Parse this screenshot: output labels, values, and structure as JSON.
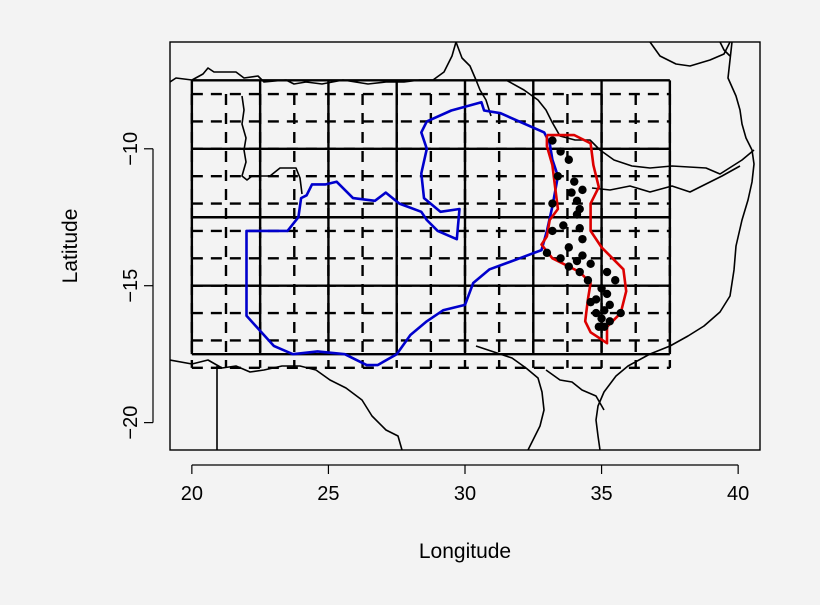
{
  "chart_data": {
    "type": "scatter",
    "title": "",
    "xlabel": "Longitude",
    "ylabel": "Latitude",
    "xlim": [
      19.2,
      40.8
    ],
    "ylim": [
      -21,
      -6.1
    ],
    "x_ticks": [
      20,
      25,
      30,
      35,
      40
    ],
    "y_ticks": [
      -20,
      -15,
      -10
    ],
    "x_tick_labels": [
      "20",
      "25",
      "30",
      "35",
      "40"
    ],
    "y_tick_labels": [
      "−20",
      "−15",
      "−10"
    ],
    "grid_coarse": {
      "lon_lines": [
        20,
        22.5,
        25,
        27.5,
        30,
        32.5,
        35,
        37.5
      ],
      "lat_lines": [
        -7.5,
        -10,
        -12.5,
        -15,
        -17.5
      ],
      "style": "solid"
    },
    "grid_fine": {
      "lon_lines": [
        20,
        21.25,
        22.5,
        23.75,
        25,
        26.25,
        27.5,
        28.75,
        30,
        31.25,
        32.5,
        33.75,
        35,
        36.25,
        37.5
      ],
      "lat_lines": [
        -8,
        -9,
        -10,
        -11,
        -12,
        -13,
        -14,
        -15,
        -16,
        -17,
        -18
      ],
      "style": "dashed"
    },
    "series": [
      {
        "color": "#0000cc",
        "kind": "outline",
        "points": [
          [
            28.6,
            -9.0
          ],
          [
            29.5,
            -8.6
          ],
          [
            30.6,
            -8.3
          ],
          [
            30.7,
            -8.6
          ],
          [
            31.3,
            -8.7
          ],
          [
            32.2,
            -9.1
          ],
          [
            32.9,
            -9.4
          ],
          [
            33.1,
            -9.8
          ],
          [
            33.2,
            -10.4
          ],
          [
            33.4,
            -11.0
          ],
          [
            33.2,
            -12.1
          ],
          [
            33.0,
            -13.0
          ],
          [
            32.8,
            -13.7
          ],
          [
            32.0,
            -14.0
          ],
          [
            30.9,
            -14.4
          ],
          [
            30.3,
            -14.9
          ],
          [
            30.0,
            -15.7
          ],
          [
            29.2,
            -15.9
          ],
          [
            28.6,
            -16.3
          ],
          [
            28.0,
            -16.8
          ],
          [
            27.5,
            -17.5
          ],
          [
            26.8,
            -17.9
          ],
          [
            26.4,
            -17.9
          ],
          [
            25.6,
            -17.5
          ],
          [
            24.6,
            -17.4
          ],
          [
            23.7,
            -17.5
          ],
          [
            23.0,
            -17.2
          ],
          [
            22.0,
            -16.1
          ],
          [
            22.0,
            -13.0
          ],
          [
            23.5,
            -13.0
          ],
          [
            23.9,
            -12.5
          ],
          [
            24.0,
            -11.8
          ],
          [
            24.2,
            -11.7
          ],
          [
            24.4,
            -11.3
          ],
          [
            24.9,
            -11.3
          ],
          [
            25.3,
            -11.2
          ],
          [
            25.9,
            -11.8
          ],
          [
            26.7,
            -11.9
          ],
          [
            27.1,
            -11.6
          ],
          [
            27.6,
            -12.0
          ],
          [
            28.4,
            -12.3
          ],
          [
            28.6,
            -12.6
          ],
          [
            29.0,
            -13.0
          ],
          [
            29.7,
            -13.3
          ],
          [
            29.8,
            -12.2
          ],
          [
            29.1,
            -12.3
          ],
          [
            28.5,
            -11.8
          ],
          [
            28.4,
            -10.9
          ],
          [
            28.6,
            -10.0
          ],
          [
            28.4,
            -9.4
          ],
          [
            28.6,
            -9.0
          ]
        ]
      },
      {
        "color": "#dd0000",
        "kind": "outline",
        "points": [
          [
            33.0,
            -9.5
          ],
          [
            33.6,
            -9.5
          ],
          [
            34.0,
            -9.5
          ],
          [
            34.6,
            -9.8
          ],
          [
            34.7,
            -10.6
          ],
          [
            34.9,
            -11.4
          ],
          [
            34.6,
            -12.0
          ],
          [
            34.6,
            -13.0
          ],
          [
            35.0,
            -13.6
          ],
          [
            35.4,
            -14.0
          ],
          [
            35.8,
            -14.4
          ],
          [
            35.9,
            -15.2
          ],
          [
            35.7,
            -16.0
          ],
          [
            35.2,
            -16.5
          ],
          [
            35.2,
            -17.1
          ],
          [
            34.9,
            -16.9
          ],
          [
            34.6,
            -16.7
          ],
          [
            34.4,
            -16.3
          ],
          [
            34.5,
            -15.5
          ],
          [
            34.6,
            -14.9
          ],
          [
            34.2,
            -14.5
          ],
          [
            33.8,
            -14.3
          ],
          [
            33.2,
            -14.0
          ],
          [
            32.8,
            -13.5
          ],
          [
            33.0,
            -13.2
          ],
          [
            33.1,
            -12.6
          ],
          [
            33.4,
            -12.2
          ],
          [
            33.3,
            -11.4
          ],
          [
            33.2,
            -10.6
          ],
          [
            33.0,
            -9.9
          ],
          [
            33.0,
            -9.5
          ]
        ]
      },
      {
        "color": "#000000",
        "kind": "points",
        "points": [
          [
            33.2,
            -9.7
          ],
          [
            33.5,
            -10.1
          ],
          [
            33.8,
            -10.4
          ],
          [
            33.4,
            -11.0
          ],
          [
            34.0,
            -11.2
          ],
          [
            33.9,
            -11.6
          ],
          [
            34.3,
            -11.5
          ],
          [
            34.1,
            -11.9
          ],
          [
            33.2,
            -12.0
          ],
          [
            34.2,
            -12.2
          ],
          [
            34.1,
            -12.4
          ],
          [
            33.6,
            -12.8
          ],
          [
            34.2,
            -12.9
          ],
          [
            33.2,
            -13.0
          ],
          [
            34.3,
            -13.3
          ],
          [
            33.8,
            -13.6
          ],
          [
            33.0,
            -13.8
          ],
          [
            34.3,
            -13.9
          ],
          [
            33.5,
            -14.0
          ],
          [
            34.1,
            -14.1
          ],
          [
            34.6,
            -14.2
          ],
          [
            33.8,
            -14.3
          ],
          [
            34.2,
            -14.5
          ],
          [
            35.2,
            -14.5
          ],
          [
            34.5,
            -14.8
          ],
          [
            35.5,
            -14.8
          ],
          [
            35.0,
            -15.1
          ],
          [
            35.2,
            -15.3
          ],
          [
            34.8,
            -15.5
          ],
          [
            34.6,
            -15.6
          ],
          [
            35.3,
            -15.7
          ],
          [
            35.1,
            -15.9
          ],
          [
            34.8,
            -16.0
          ],
          [
            35.7,
            -16.0
          ],
          [
            35.0,
            -16.2
          ],
          [
            35.3,
            -16.3
          ],
          [
            35.1,
            -16.5
          ],
          [
            34.9,
            -16.5
          ]
        ]
      }
    ]
  }
}
